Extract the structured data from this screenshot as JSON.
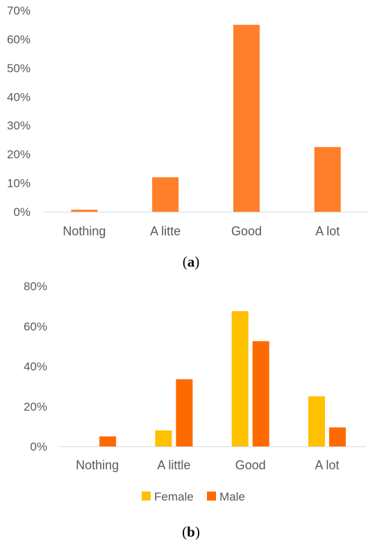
{
  "colors": {
    "single": "#FF7F2A",
    "female": "#FFC000",
    "male": "#FF6A00",
    "axis": "#D9D9D9",
    "text": "#595959"
  },
  "chart_data": [
    {
      "type": "bar",
      "caption_label": "a",
      "categories": [
        "Nothing",
        "A litte",
        "Good",
        "A lot"
      ],
      "values": [
        0.7,
        12.0,
        65.0,
        22.5
      ],
      "ylim": [
        0,
        70
      ],
      "yticks": [
        "0%",
        "10%",
        "20%",
        "30%",
        "40%",
        "50%",
        "60%",
        "70%"
      ],
      "grid": false,
      "legend": "none"
    },
    {
      "type": "bar",
      "caption_label": "b",
      "categories": [
        "Nothing",
        "A little",
        "Good",
        "A lot"
      ],
      "series": [
        {
          "name": "Female",
          "values": [
            0,
            8.0,
            67.5,
            25.0
          ]
        },
        {
          "name": "Male",
          "values": [
            5.0,
            33.5,
            52.5,
            9.5
          ]
        }
      ],
      "ylim": [
        0,
        80
      ],
      "yticks": [
        "0%",
        "20%",
        "40%",
        "60%",
        "80%"
      ],
      "grid": false,
      "legend": "bottom"
    }
  ]
}
